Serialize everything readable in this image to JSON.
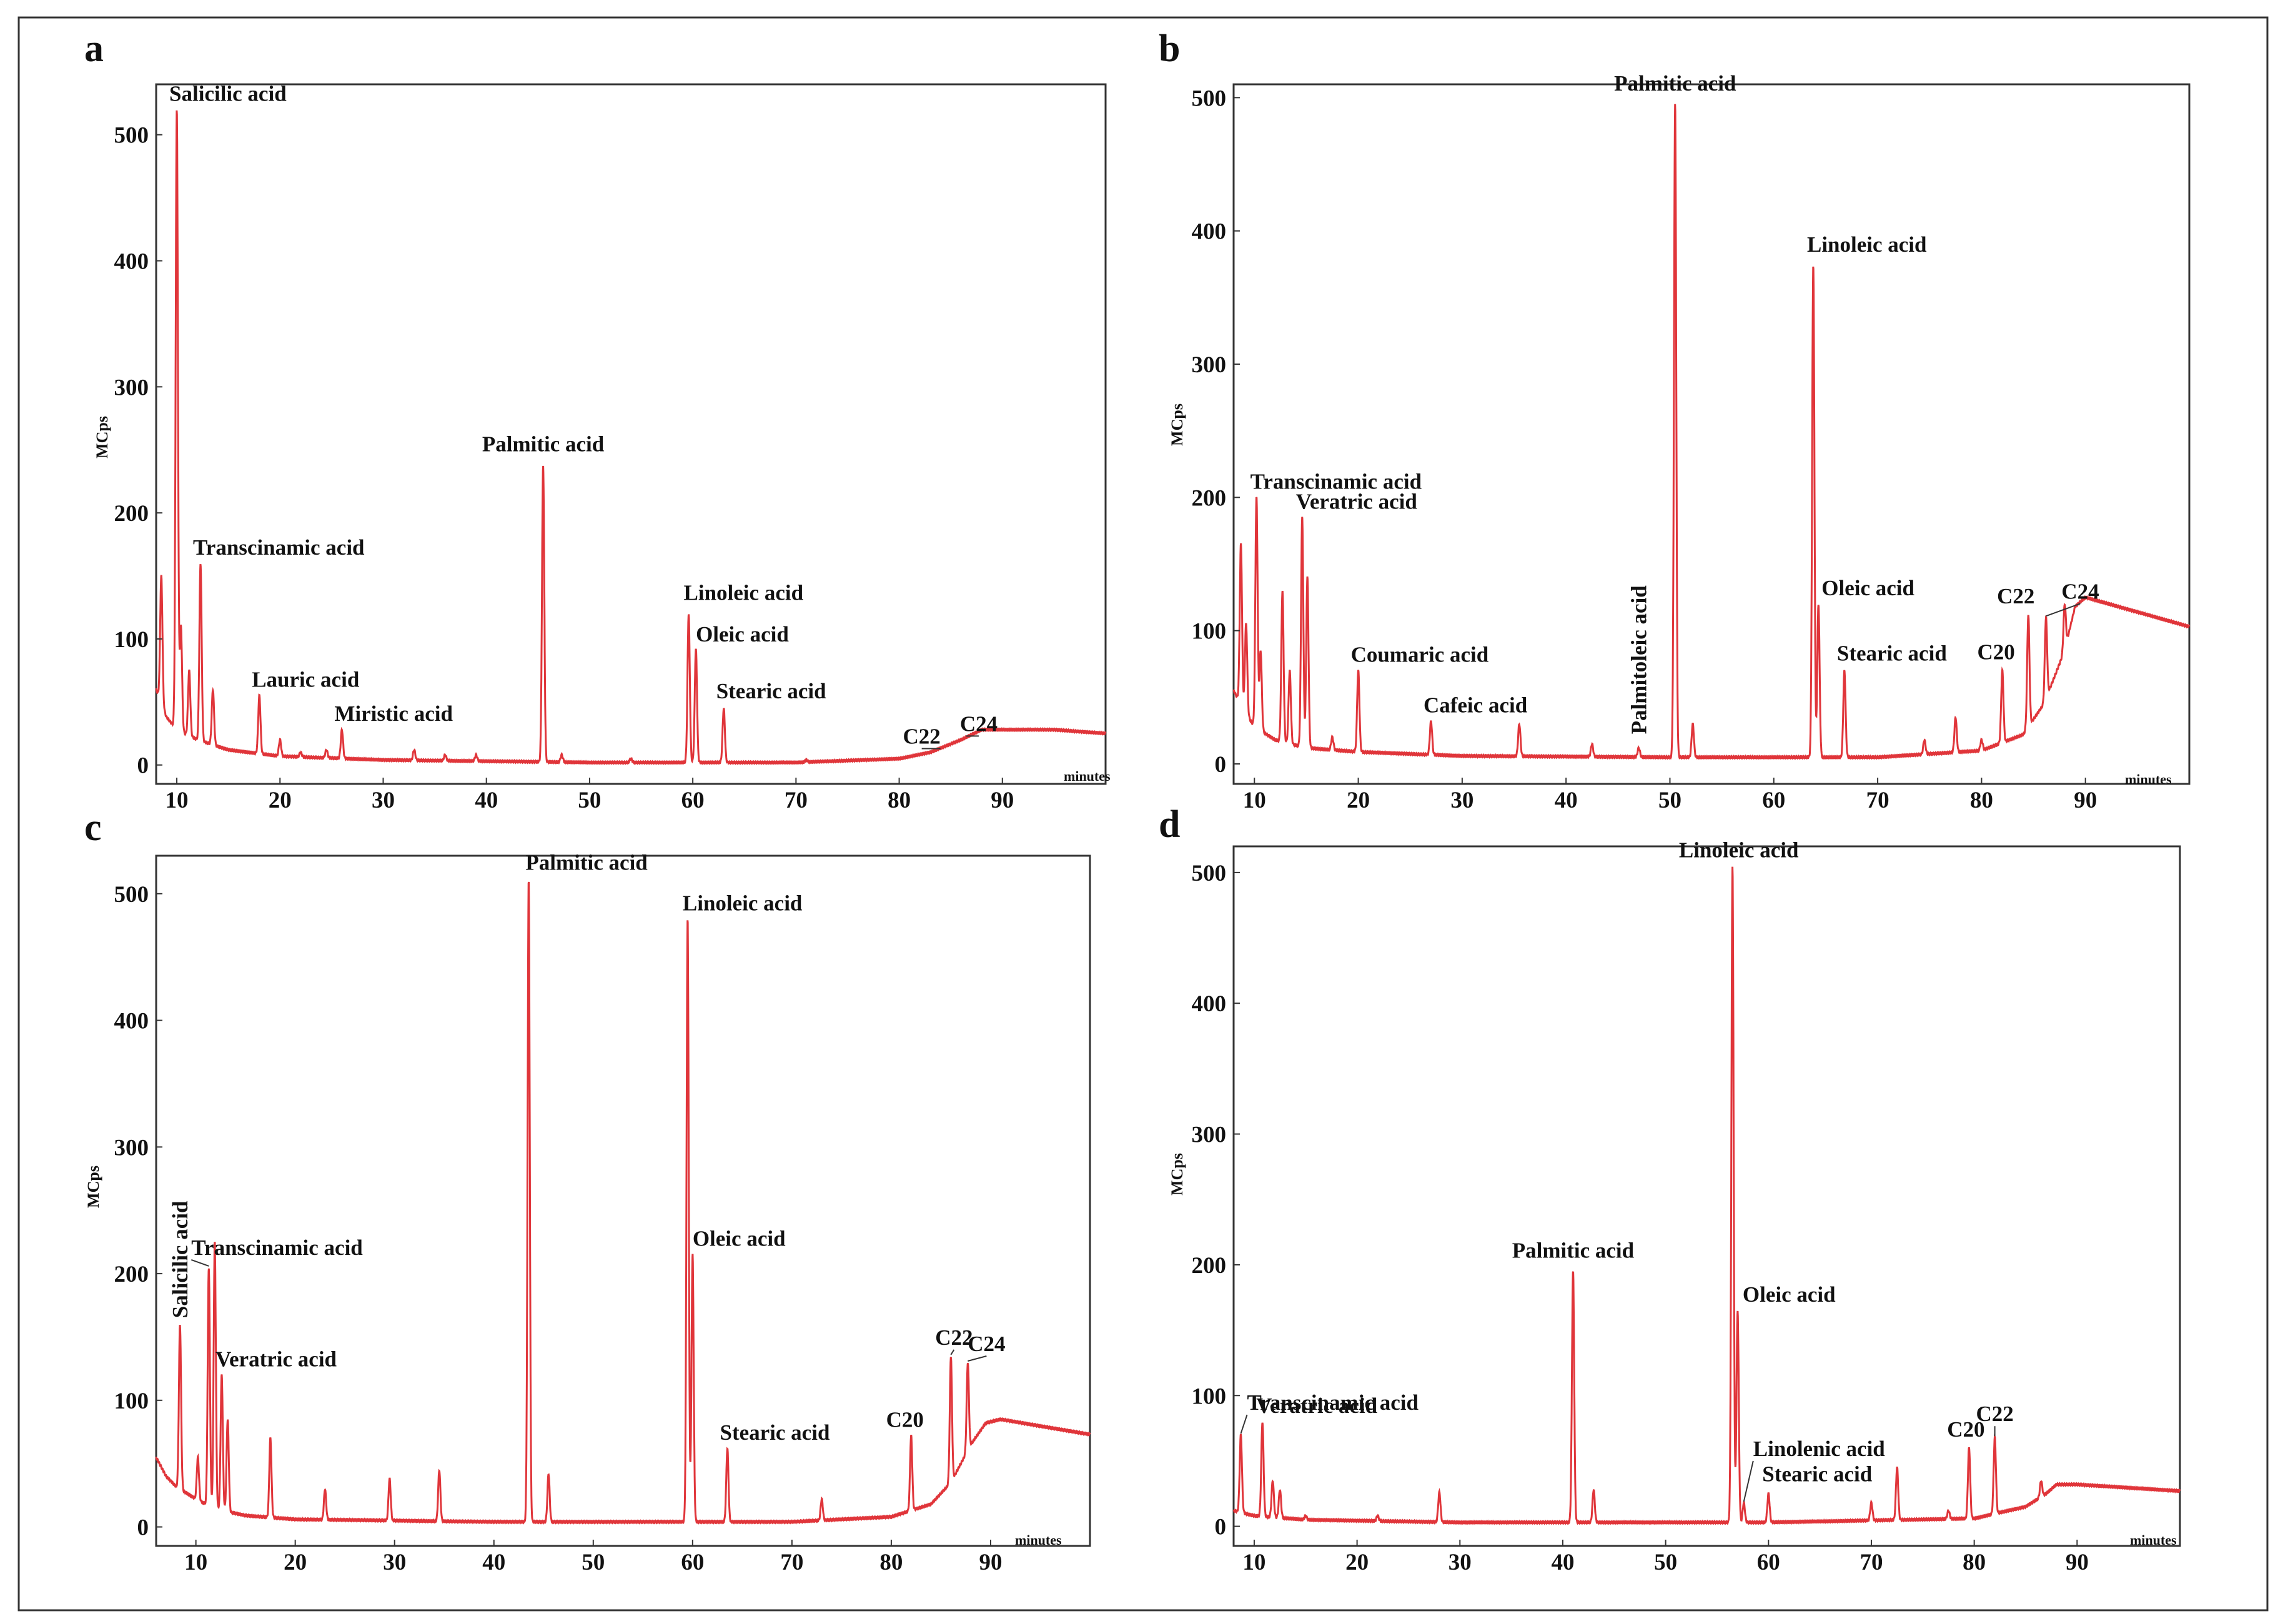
{
  "figure": {
    "type": "chromatogram-panels",
    "line_color": "#e0353a",
    "frame_color": "#333333",
    "background": "#ffffff"
  },
  "chart_data": [
    {
      "type": "line",
      "panel": "a",
      "ylabel": "MCps",
      "xlabel": "minutes",
      "xlim": [
        8,
        100
      ],
      "ylim": [
        -15,
        540
      ],
      "xticks": [
        10,
        20,
        30,
        40,
        50,
        60,
        70,
        80,
        90
      ],
      "yticks": [
        0,
        100,
        200,
        300,
        400,
        500
      ],
      "tick_labels_x": [
        "10",
        "20",
        "30",
        "40",
        "50",
        "60",
        "70",
        "80",
        "90"
      ],
      "tick_labels_y": [
        "0",
        "100",
        "200",
        "300",
        "400",
        "500"
      ],
      "baseline": [
        [
          8,
          60
        ],
        [
          9,
          38
        ],
        [
          10,
          28
        ],
        [
          12,
          20
        ],
        [
          15,
          12
        ],
        [
          20,
          7
        ],
        [
          30,
          4
        ],
        [
          50,
          2
        ],
        [
          70,
          2
        ],
        [
          80,
          5
        ],
        [
          83,
          10
        ],
        [
          86,
          20
        ],
        [
          88,
          28
        ],
        [
          95,
          28
        ],
        [
          100,
          25
        ]
      ],
      "peaks": [
        [
          8.5,
          150
        ],
        [
          10,
          520
        ],
        [
          10.4,
          110
        ],
        [
          11.2,
          75
        ],
        [
          12.3,
          160
        ],
        [
          13.5,
          60
        ],
        [
          18,
          55
        ],
        [
          20,
          20
        ],
        [
          22,
          10
        ],
        [
          24.5,
          12
        ],
        [
          26,
          28
        ],
        [
          33,
          12
        ],
        [
          36,
          8
        ],
        [
          39,
          8
        ],
        [
          45.5,
          238
        ],
        [
          47.3,
          8
        ],
        [
          54,
          5
        ],
        [
          59.6,
          120
        ],
        [
          60.3,
          92
        ],
        [
          63,
          45
        ],
        [
          71,
          4
        ],
        [
          80,
          5
        ]
      ],
      "labels": [
        {
          "text": "Salicilic acid",
          "x": 10,
          "y": 520
        },
        {
          "text": "Transcinamic acid",
          "x": 12.3,
          "y": 160
        },
        {
          "text": "Lauric acid",
          "x": 18,
          "y": 55
        },
        {
          "text": "Miristic acid",
          "x": 26,
          "y": 28
        },
        {
          "text": "Palmitic acid",
          "x": 45.5,
          "y": 238
        },
        {
          "text": "Linoleic acid",
          "x": 59.6,
          "y": 120
        },
        {
          "text": "Oleic acid",
          "x": 60.3,
          "y": 92
        },
        {
          "text": "Stearic acid",
          "x": 63,
          "y": 45
        },
        {
          "text": "C22",
          "x": 84,
          "y": 12
        },
        {
          "text": "C24",
          "x": 86.5,
          "y": 22
        }
      ]
    },
    {
      "type": "line",
      "panel": "b",
      "ylabel": "MCps",
      "xlabel": "minutes",
      "xlim": [
        8,
        100
      ],
      "ylim": [
        -15,
        510
      ],
      "xticks": [
        10,
        20,
        30,
        40,
        50,
        60,
        70,
        80,
        90
      ],
      "yticks": [
        0,
        100,
        200,
        300,
        400,
        500
      ],
      "tick_labels_x": [
        "10",
        "20",
        "30",
        "40",
        "50",
        "60",
        "70",
        "80",
        "90"
      ],
      "tick_labels_y": [
        "0",
        "100",
        "200",
        "300",
        "400",
        "500"
      ],
      "baseline": [
        [
          8,
          55
        ],
        [
          9,
          40
        ],
        [
          10,
          28
        ],
        [
          12,
          18
        ],
        [
          15,
          12
        ],
        [
          20,
          9
        ],
        [
          30,
          6
        ],
        [
          50,
          5
        ],
        [
          70,
          5
        ],
        [
          80,
          10
        ],
        [
          84,
          22
        ],
        [
          86,
          45
        ],
        [
          88,
          85
        ],
        [
          89,
          118
        ],
        [
          90,
          125
        ],
        [
          100,
          103
        ]
      ],
      "peaks": [
        [
          8.7,
          165
        ],
        [
          9.2,
          105
        ],
        [
          10.2,
          200
        ],
        [
          10.6,
          85
        ],
        [
          12.7,
          130
        ],
        [
          13.4,
          70
        ],
        [
          14.6,
          185
        ],
        [
          15.1,
          140
        ],
        [
          17.5,
          20
        ],
        [
          20,
          70
        ],
        [
          27,
          32
        ],
        [
          35.5,
          30
        ],
        [
          42.5,
          15
        ],
        [
          47,
          12
        ],
        [
          50.5,
          495
        ],
        [
          52.2,
          30
        ],
        [
          63.8,
          375
        ],
        [
          64.3,
          120
        ],
        [
          66.8,
          70
        ],
        [
          74.5,
          18
        ],
        [
          77.5,
          35
        ],
        [
          80,
          18
        ],
        [
          82,
          70
        ],
        [
          84.5,
          112
        ],
        [
          86.2,
          110
        ],
        [
          88,
          120
        ]
      ],
      "labels": [
        {
          "text": "Transcinamic acid",
          "x": 10.2,
          "y": 200
        },
        {
          "text": "Veratric acid",
          "x": 14.6,
          "y": 185
        },
        {
          "text": "Coumaric acid",
          "x": 20,
          "y": 70
        },
        {
          "text": "Cafeic acid",
          "x": 27,
          "y": 32
        },
        {
          "text": "Palmitoleic acid",
          "x": 47,
          "y": 12
        },
        {
          "text": "Palmitic acid",
          "x": 50.5,
          "y": 495
        },
        {
          "text": "Linoleic acid",
          "x": 63.8,
          "y": 375
        },
        {
          "text": "Oleic acid",
          "x": 64.3,
          "y": 120
        },
        {
          "text": "Stearic acid",
          "x": 66.8,
          "y": 70
        },
        {
          "text": "C20",
          "x": 82,
          "y": 70
        },
        {
          "text": "C22",
          "x": 84.5,
          "y": 112
        },
        {
          "text": "C24",
          "x": 86.2,
          "y": 110
        }
      ]
    },
    {
      "type": "line",
      "panel": "c",
      "ylabel": "MCps",
      "xlabel": "minutes",
      "xlim": [
        6,
        100
      ],
      "ylim": [
        -15,
        530
      ],
      "xticks": [
        10,
        20,
        30,
        40,
        50,
        60,
        70,
        80,
        90
      ],
      "yticks": [
        0,
        100,
        200,
        300,
        400,
        500
      ],
      "tick_labels_x": [
        "10",
        "20",
        "30",
        "40",
        "50",
        "60",
        "70",
        "80",
        "90"
      ],
      "tick_labels_y": [
        "0",
        "100",
        "200",
        "300",
        "400",
        "500"
      ],
      "baseline": [
        [
          6,
          55
        ],
        [
          7,
          40
        ],
        [
          8,
          32
        ],
        [
          10,
          22
        ],
        [
          12,
          14
        ],
        [
          15,
          9
        ],
        [
          20,
          6
        ],
        [
          40,
          4
        ],
        [
          70,
          4
        ],
        [
          80,
          8
        ],
        [
          84,
          18
        ],
        [
          86,
          35
        ],
        [
          88,
          65
        ],
        [
          89.5,
          82
        ],
        [
          91,
          85
        ],
        [
          100,
          73
        ]
      ],
      "peaks": [
        [
          8.4,
          160
        ],
        [
          10.2,
          55
        ],
        [
          11.3,
          205
        ],
        [
          11.9,
          225
        ],
        [
          12.6,
          120
        ],
        [
          13.2,
          85
        ],
        [
          17.5,
          70
        ],
        [
          23,
          30
        ],
        [
          29.5,
          38
        ],
        [
          34.5,
          45
        ],
        [
          43.5,
          512
        ],
        [
          45.5,
          42
        ],
        [
          59.5,
          480
        ],
        [
          60,
          215
        ],
        [
          63.5,
          62
        ],
        [
          73,
          22
        ],
        [
          82,
          72
        ],
        [
          86,
          135
        ],
        [
          87.7,
          130
        ]
      ],
      "labels": [
        {
          "text": "Salicilic acid",
          "x": 8.4,
          "y": 160
        },
        {
          "text": "Transcinamic acid",
          "x": 11.3,
          "y": 205
        },
        {
          "text": "Veratric acid",
          "x": 12.6,
          "y": 120
        },
        {
          "text": "Palmitic acid",
          "x": 43.5,
          "y": 512
        },
        {
          "text": "Linoleic acid",
          "x": 59.5,
          "y": 480
        },
        {
          "text": "Oleic acid",
          "x": 60,
          "y": 215
        },
        {
          "text": "Stearic acid",
          "x": 63.5,
          "y": 62
        },
        {
          "text": "C20",
          "x": 82,
          "y": 72
        },
        {
          "text": "C22",
          "x": 86,
          "y": 135
        },
        {
          "text": "C24",
          "x": 87.7,
          "y": 130
        }
      ]
    },
    {
      "type": "line",
      "panel": "d",
      "ylabel": "MCps",
      "xlabel": "minutes",
      "xlim": [
        8,
        100
      ],
      "ylim": [
        -15,
        520
      ],
      "xticks": [
        10,
        20,
        30,
        40,
        50,
        60,
        70,
        80,
        90
      ],
      "yticks": [
        0,
        100,
        200,
        300,
        400,
        500
      ],
      "tick_labels_x": [
        "10",
        "20",
        "30",
        "40",
        "50",
        "60",
        "70",
        "80",
        "90"
      ],
      "tick_labels_y": [
        "0",
        "100",
        "200",
        "300",
        "400",
        "500"
      ],
      "baseline": [
        [
          8,
          12
        ],
        [
          10,
          8
        ],
        [
          15,
          5
        ],
        [
          30,
          3
        ],
        [
          60,
          3
        ],
        [
          80,
          6
        ],
        [
          85,
          15
        ],
        [
          87,
          25
        ],
        [
          88,
          32
        ],
        [
          90,
          32
        ],
        [
          100,
          27
        ]
      ],
      "peaks": [
        [
          8.7,
          70
        ],
        [
          10.8,
          80
        ],
        [
          11.8,
          35
        ],
        [
          12.5,
          28
        ],
        [
          15,
          8
        ],
        [
          22,
          8
        ],
        [
          28,
          26
        ],
        [
          41,
          195
        ],
        [
          43,
          28
        ],
        [
          56.5,
          505
        ],
        [
          57,
          165
        ],
        [
          57.6,
          18
        ],
        [
          60,
          25
        ],
        [
          70,
          18
        ],
        [
          72.5,
          45
        ],
        [
          77.5,
          12
        ],
        [
          79.5,
          60
        ],
        [
          82,
          68
        ],
        [
          86.5,
          35
        ]
      ],
      "labels": [
        {
          "text": "Transcinamic acid",
          "x": 8.7,
          "y": 70
        },
        {
          "text": "Veratric acid",
          "x": 10.8,
          "y": 80
        },
        {
          "text": "Palmitic acid",
          "x": 41,
          "y": 195
        },
        {
          "text": "Linoleic acid",
          "x": 56.5,
          "y": 505
        },
        {
          "text": "Oleic acid",
          "x": 57,
          "y": 165
        },
        {
          "text": "Linolenic acid",
          "x": 57.6,
          "y": 18
        },
        {
          "text": "Stearic acid",
          "x": 60,
          "y": 25
        },
        {
          "text": "C20",
          "x": 79.5,
          "y": 60
        },
        {
          "text": "C22",
          "x": 82,
          "y": 68
        }
      ]
    }
  ]
}
